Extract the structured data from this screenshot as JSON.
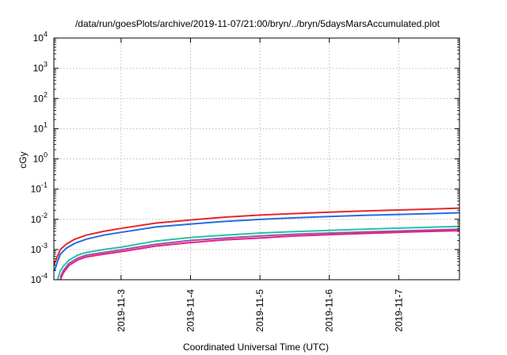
{
  "chart_data": {
    "type": "line",
    "title": "/data/run/goesPlots/archive/2019-11-07/21:00/bryn/../bryn/5daysMarsAccumulated.plot",
    "xlabel": "Coordinated Universal Time (UTC)",
    "ylabel": "cGy",
    "y_scale": "log",
    "ylim": [
      0.0001,
      10000
    ],
    "y_ticks": [
      {
        "value": 0.0001,
        "base": "10",
        "exp": "-4"
      },
      {
        "value": 0.001,
        "base": "10",
        "exp": "-3"
      },
      {
        "value": 0.01,
        "base": "10",
        "exp": "-2"
      },
      {
        "value": 0.1,
        "base": "10",
        "exp": "-1"
      },
      {
        "value": 1,
        "base": "10",
        "exp": "0"
      },
      {
        "value": 10,
        "base": "10",
        "exp": "1"
      },
      {
        "value": 100,
        "base": "10",
        "exp": "2"
      },
      {
        "value": 1000,
        "base": "10",
        "exp": "3"
      },
      {
        "value": 10000,
        "base": "10",
        "exp": "4"
      }
    ],
    "xlim": [
      "2019-11-02T00:45",
      "2019-11-07T21:00"
    ],
    "x_ticks": [
      "2019-11-3",
      "2019-11-4",
      "2019-11-5",
      "2019-11-6",
      "2019-11-7"
    ],
    "grid": true,
    "series": [
      {
        "color": "#e8262a",
        "x": [
          "2019-11-02T00:45",
          "2019-11-02T02:00",
          "2019-11-02T03:00",
          "2019-11-02T05:00",
          "2019-11-02T08:00",
          "2019-11-02T12:00",
          "2019-11-02T18:00",
          "2019-11-03T00:00",
          "2019-11-03T12:00",
          "2019-11-04T00:00",
          "2019-11-04T12:00",
          "2019-11-05T00:00",
          "2019-11-05T12:00",
          "2019-11-06T00:00",
          "2019-11-06T12:00",
          "2019-11-07T00:00",
          "2019-11-07T12:00",
          "2019-11-07T21:00"
        ],
        "y": [
          0.0003,
          0.0006,
          0.001,
          0.0015,
          0.0022,
          0.003,
          0.004,
          0.005,
          0.0075,
          0.0095,
          0.0118,
          0.0138,
          0.0155,
          0.0172,
          0.0188,
          0.0203,
          0.0218,
          0.0235
        ]
      },
      {
        "color": "#1f6fe5",
        "x": [
          "2019-11-02T01:00",
          "2019-11-02T02:00",
          "2019-11-02T03:00",
          "2019-11-02T05:00",
          "2019-11-02T08:00",
          "2019-11-02T12:00",
          "2019-11-02T18:00",
          "2019-11-03T00:00",
          "2019-11-03T12:00",
          "2019-11-04T00:00",
          "2019-11-04T12:00",
          "2019-11-05T00:00",
          "2019-11-05T12:00",
          "2019-11-06T00:00",
          "2019-11-06T12:00",
          "2019-11-07T00:00",
          "2019-11-07T12:00",
          "2019-11-07T21:00"
        ],
        "y": [
          0.0002,
          0.0004,
          0.0007,
          0.0011,
          0.0016,
          0.0022,
          0.003,
          0.0037,
          0.0056,
          0.007,
          0.0085,
          0.0099,
          0.0112,
          0.0124,
          0.0135,
          0.0145,
          0.0155,
          0.0165
        ]
      },
      {
        "color": "#27c2a0",
        "x": [
          "2019-11-02T02:00",
          "2019-11-02T03:00",
          "2019-11-02T04:00",
          "2019-11-02T06:00",
          "2019-11-02T09:00",
          "2019-11-02T12:00",
          "2019-11-02T18:00",
          "2019-11-03T00:00",
          "2019-11-03T12:00",
          "2019-11-04T00:00",
          "2019-11-04T12:00",
          "2019-11-05T00:00",
          "2019-11-05T12:00",
          "2019-11-06T00:00",
          "2019-11-06T12:00",
          "2019-11-07T00:00",
          "2019-11-07T12:00",
          "2019-11-07T21:00"
        ],
        "y": [
          0.0001,
          0.0002,
          0.00028,
          0.00045,
          0.00065,
          0.0008,
          0.001,
          0.0012,
          0.0019,
          0.0025,
          0.003,
          0.0035,
          0.0039,
          0.0043,
          0.0047,
          0.0051,
          0.0055,
          0.0058
        ]
      },
      {
        "color": "#9b4fb0",
        "x": [
          "2019-11-02T03:00",
          "2019-11-02T04:00",
          "2019-11-02T06:00",
          "2019-11-02T09:00",
          "2019-11-02T12:00",
          "2019-11-02T18:00",
          "2019-11-03T00:00",
          "2019-11-03T12:00",
          "2019-11-04T00:00",
          "2019-11-04T12:00",
          "2019-11-05T00:00",
          "2019-11-05T12:00",
          "2019-11-06T00:00",
          "2019-11-06T12:00",
          "2019-11-07T00:00",
          "2019-11-07T12:00",
          "2019-11-07T21:00"
        ],
        "y": [
          0.00012,
          0.0002,
          0.00035,
          0.00052,
          0.00065,
          0.0008,
          0.00098,
          0.0015,
          0.002,
          0.0024,
          0.0028,
          0.0032,
          0.0035,
          0.0038,
          0.0041,
          0.0044,
          0.0047
        ]
      },
      {
        "color": "#e8207f",
        "x": [
          "2019-11-02T03:00",
          "2019-11-02T04:00",
          "2019-11-02T06:00",
          "2019-11-02T09:00",
          "2019-11-02T12:00",
          "2019-11-02T18:00",
          "2019-11-03T00:00",
          "2019-11-03T12:00",
          "2019-11-04T00:00",
          "2019-11-04T12:00",
          "2019-11-05T00:00",
          "2019-11-05T12:00",
          "2019-11-06T00:00",
          "2019-11-06T12:00",
          "2019-11-07T00:00",
          "2019-11-07T12:00",
          "2019-11-07T21:00"
        ],
        "y": [
          0.0001,
          0.00017,
          0.0003,
          0.00045,
          0.00057,
          0.0007,
          0.00085,
          0.0013,
          0.0017,
          0.0021,
          0.0024,
          0.0028,
          0.0031,
          0.0034,
          0.0037,
          0.004,
          0.0042
        ]
      }
    ]
  }
}
